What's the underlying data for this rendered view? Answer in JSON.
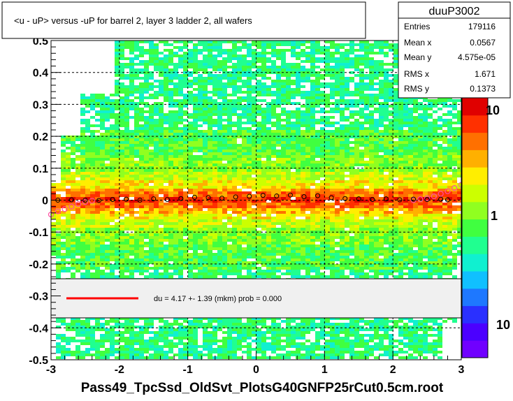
{
  "title": "<u - uP>       versus  -uP for barrel 2, layer 3 ladder 2, all wafers",
  "footer": "Pass49_TpcSsd_OldSvt_PlotsG40GNFP25rCut0.5cm.root",
  "stats": {
    "name": "duuP3002",
    "rows": [
      {
        "label": "Entries",
        "value": "179116"
      },
      {
        "label": "Mean x",
        "value": "0.0567"
      },
      {
        "label": "Mean y",
        "value": "4.575e-05"
      },
      {
        "label": "RMS x",
        "value": "1.671"
      },
      {
        "label": "RMS y",
        "value": "0.1373"
      }
    ]
  },
  "legend": {
    "text": "du =    4.17 +-  1.39 (mkm) prob = 0.000",
    "line_color": "#ff0000"
  },
  "palette": {
    "labels": [
      "10",
      "1",
      "10"
    ]
  },
  "chart_data": {
    "type": "heatmap",
    "xlim": [
      -3,
      3
    ],
    "ylim": [
      -0.5,
      0.5
    ],
    "x_ticks": [
      -3,
      -2,
      -1,
      0,
      1,
      2,
      3
    ],
    "y_ticks": [
      -0.5,
      -0.4,
      -0.3,
      -0.2,
      -0.1,
      0,
      0.1,
      0.2,
      0.3,
      0.4,
      0.5
    ],
    "x_tick_labels": [
      "-3",
      "-2",
      "-1",
      "0",
      "1",
      "2",
      "3"
    ],
    "y_tick_labels": [
      "-0.5",
      "-0.4",
      "-0.3",
      "-0.2",
      "-0.1",
      "0",
      "0.1",
      "0.2",
      "0.3",
      "0.4",
      "0.5"
    ],
    "grid": true,
    "colors": [
      "#7000ff",
      "#4b00ff",
      "#2a30ff",
      "#1e78ff",
      "#10c0ff",
      "#10f0d0",
      "#20ff90",
      "#40ff40",
      "#90ff20",
      "#ccff00",
      "#ffee00",
      "#ffb000",
      "#ff7000",
      "#ff3000",
      "#e00000"
    ],
    "profile_points": {
      "x": [
        -2.9,
        -2.7,
        -2.5,
        -2.3,
        -2.1,
        -1.9,
        -1.7,
        -1.5,
        -1.3,
        -1.1,
        -0.9,
        -0.7,
        -0.5,
        -0.3,
        -0.1,
        0.1,
        0.3,
        0.5,
        0.7,
        0.9,
        1.1,
        1.3,
        1.5,
        1.7,
        1.9,
        2.1,
        2.3,
        2.5,
        2.7,
        2.8
      ],
      "y": [
        0.0,
        0.001,
        0.0,
        -0.001,
        0.002,
        0.003,
        0.0,
        0.004,
        0.002,
        0.005,
        0.009,
        0.008,
        0.006,
        0.01,
        0.012,
        0.015,
        0.013,
        0.016,
        0.011,
        0.014,
        0.008,
        0.005,
        0.004,
        0.002,
        0.004,
        0.001,
        0.003,
        0.002,
        0.003,
        0.001
      ]
    },
    "fit_points": {
      "x": [
        -3.0,
        -2.9,
        -2.8,
        -2.7,
        -2.6,
        -2.5,
        -2.4,
        2.3,
        2.4,
        2.5,
        2.6,
        2.7,
        2.8,
        2.9,
        3.0
      ],
      "y": [
        -0.045,
        -0.035,
        -0.028,
        -0.02,
        -0.012,
        -0.006,
        -0.002,
        0.0,
        0.003,
        0.006,
        0.012,
        0.02,
        0.028,
        0.038,
        0.048
      ]
    }
  }
}
